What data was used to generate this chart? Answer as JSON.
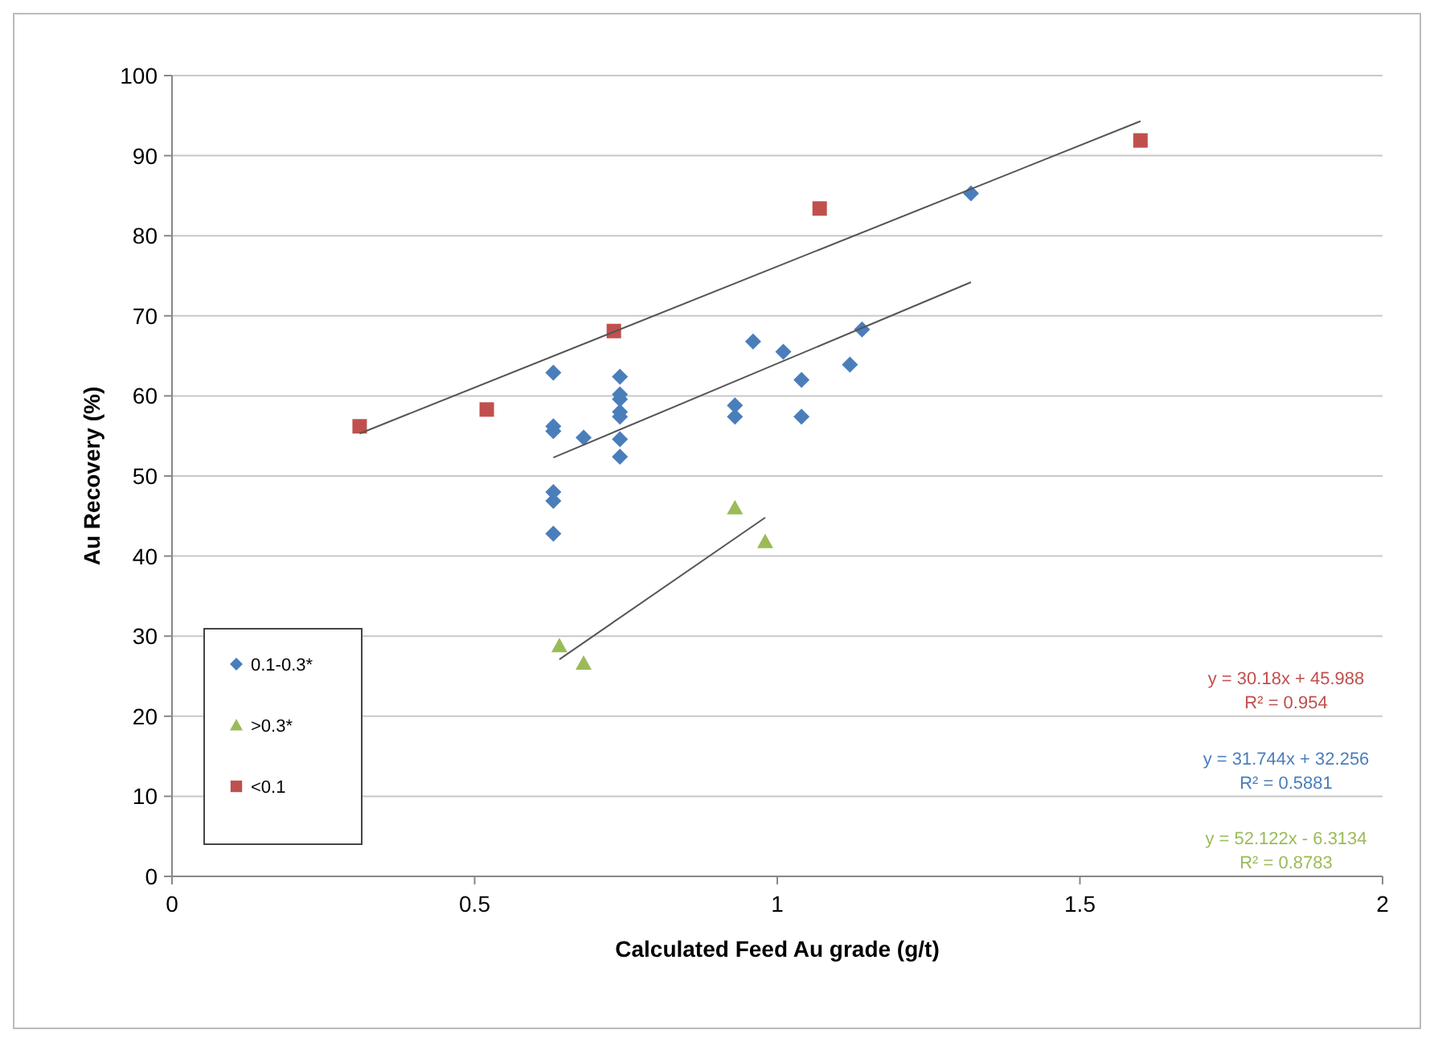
{
  "chart_data": {
    "type": "scatter",
    "xlabel": "Calculated Feed Au grade (g/t)",
    "ylabel": "Au Recovery (%)",
    "xlim": [
      0,
      2
    ],
    "xticks": [
      0,
      0.5,
      1,
      1.5,
      2
    ],
    "ylim": [
      0,
      100
    ],
    "yticks": [
      0,
      10,
      20,
      30,
      40,
      50,
      60,
      70,
      80,
      90,
      100
    ],
    "grid": "y",
    "legend": "bottom left",
    "series": [
      {
        "name": "0.1-0.3*",
        "color": "#4a7ebb",
        "marker": "diamond",
        "x": [
          0.63,
          0.63,
          0.63,
          0.63,
          0.63,
          0.63,
          0.68,
          0.74,
          0.74,
          0.74,
          0.74,
          0.74,
          0.74,
          0.74,
          0.93,
          0.93,
          0.96,
          1.01,
          1.04,
          1.04,
          1.12,
          1.14,
          1.32
        ],
        "values": [
          62.9,
          56.2,
          55.6,
          48.0,
          46.9,
          42.8,
          54.8,
          62.4,
          60.2,
          59.6,
          58.0,
          57.4,
          54.6,
          52.4,
          58.8,
          57.4,
          66.8,
          65.5,
          62.0,
          57.4,
          63.9,
          68.3,
          85.3
        ]
      },
      {
        "name": ">0.3*",
        "color": "#9bbb59",
        "marker": "triangle",
        "x": [
          0.64,
          0.68,
          0.93,
          0.98
        ],
        "values": [
          28.8,
          26.6,
          46.0,
          41.8
        ]
      },
      {
        "name": "<0.1",
        "color": "#c0504d",
        "marker": "square",
        "x": [
          0.31,
          0.52,
          0.73,
          1.07,
          1.6
        ],
        "values": [
          56.2,
          58.3,
          68.1,
          83.4,
          91.9
        ]
      },
      {
        "type": "line",
        "color": "#555555",
        "marker": "none",
        "x": [
          0.31,
          1.6
        ],
        "values": [
          55.3,
          94.3
        ]
      },
      {
        "type": "line",
        "color": "#555555",
        "marker": "none",
        "x": [
          0.63,
          1.32
        ],
        "values": [
          52.3,
          74.2
        ]
      },
      {
        "type": "line",
        "color": "#555555",
        "marker": "none",
        "x": [
          0.64,
          0.98
        ],
        "values": [
          27.1,
          44.8
        ]
      }
    ],
    "annotations": [
      "y = 30.18x + 45.988\nR² = 0.954",
      "y = 31.744x + 32.256\nR² = 0.5881",
      "y = 52.122x - 6.3134\nR² = 0.8783"
    ]
  }
}
